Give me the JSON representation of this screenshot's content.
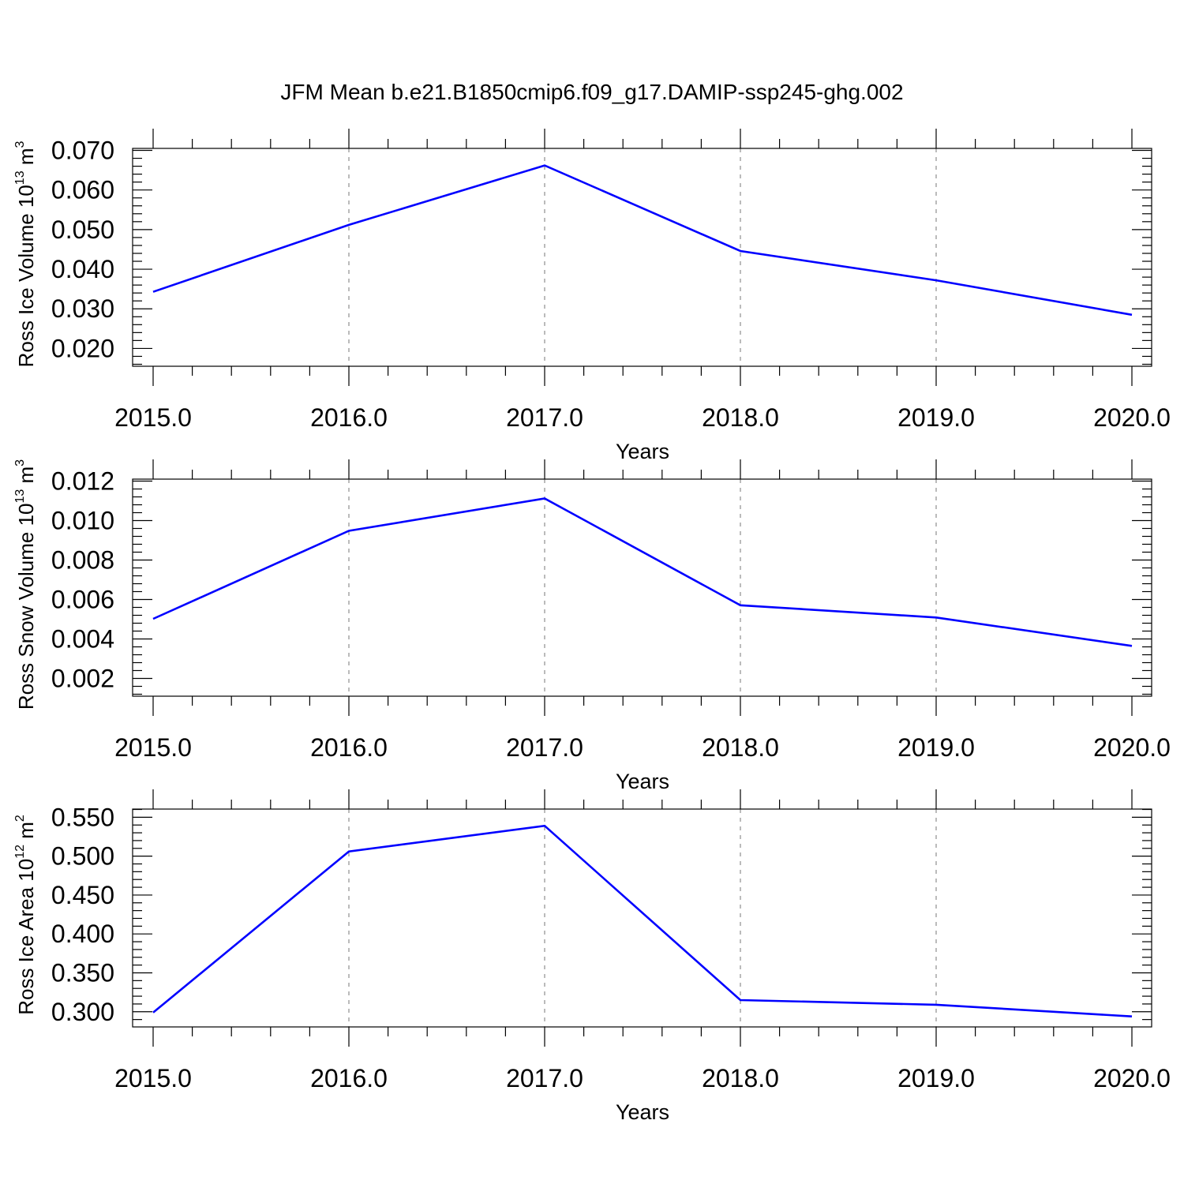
{
  "title": "JFM Mean b.e21.B1850cmip6.f09_g17.DAMIP-ssp245-ghg.002",
  "line_color": "#0000ff",
  "chart_data": [
    {
      "type": "line",
      "ylabel": {
        "text": "Ross Ice Volume 10",
        "sup": "13",
        "unit": " m",
        "unit_sup": "3"
      },
      "xlabel": "Years",
      "x": [
        2015,
        2016,
        2017,
        2018,
        2019,
        2020
      ],
      "series": [
        {
          "values": [
            0.0343,
            0.0512,
            0.0662,
            0.0446,
            0.0372,
            0.0285
          ]
        }
      ],
      "xlim": [
        2015,
        2020
      ],
      "ylim": [
        0.0155,
        0.0705
      ],
      "yticks": [
        0.02,
        0.03,
        0.04,
        0.05,
        0.06,
        0.07
      ],
      "ytick_labels": [
        "0.020",
        "0.030",
        "0.040",
        "0.050",
        "0.060",
        "0.070"
      ],
      "ytick_minor_step": 0.002,
      "xticks": [
        2015,
        2016,
        2017,
        2018,
        2019,
        2020
      ],
      "xtick_labels": [
        "2015.0",
        "2016.0",
        "2017.0",
        "2018.0",
        "2019.0",
        "2020.0"
      ],
      "xtick_minor_step": 0.2,
      "grid_x": true
    },
    {
      "type": "line",
      "ylabel": {
        "text": "Ross Snow Volume 10",
        "sup": "13",
        "unit": " m",
        "unit_sup": "3"
      },
      "xlabel": "Years",
      "x": [
        2015,
        2016,
        2017,
        2018,
        2019,
        2020
      ],
      "series": [
        {
          "values": [
            0.00502,
            0.00948,
            0.01112,
            0.00571,
            0.00509,
            0.00365
          ]
        }
      ],
      "xlim": [
        2015,
        2020
      ],
      "ylim": [
        0.0011,
        0.0121
      ],
      "yticks": [
        0.002,
        0.004,
        0.006,
        0.008,
        0.01,
        0.012
      ],
      "ytick_labels": [
        "0.002",
        "0.004",
        "0.006",
        "0.008",
        "0.010",
        "0.012"
      ],
      "ytick_minor_step": 0.0004,
      "xticks": [
        2015,
        2016,
        2017,
        2018,
        2019,
        2020
      ],
      "xtick_labels": [
        "2015.0",
        "2016.0",
        "2017.0",
        "2018.0",
        "2019.0",
        "2020.0"
      ],
      "xtick_minor_step": 0.2,
      "grid_x": true
    },
    {
      "type": "line",
      "ylabel": {
        "text": "Ross Ice Area 10",
        "sup": "12",
        "unit": " m",
        "unit_sup": "2"
      },
      "xlabel": "Years",
      "x": [
        2015,
        2016,
        2017,
        2018,
        2019,
        2020
      ],
      "series": [
        {
          "values": [
            0.299,
            0.506,
            0.539,
            0.315,
            0.309,
            0.294
          ]
        }
      ],
      "xlim": [
        2015,
        2020
      ],
      "ylim": [
        0.2805,
        0.5605
      ],
      "yticks": [
        0.3,
        0.35,
        0.4,
        0.45,
        0.5,
        0.55
      ],
      "ytick_labels": [
        "0.300",
        "0.350",
        "0.400",
        "0.450",
        "0.500",
        "0.550"
      ],
      "ytick_minor_step": 0.01,
      "xticks": [
        2015,
        2016,
        2017,
        2018,
        2019,
        2020
      ],
      "xtick_labels": [
        "2015.0",
        "2016.0",
        "2017.0",
        "2018.0",
        "2019.0",
        "2020.0"
      ],
      "xtick_minor_step": 0.2,
      "grid_x": true
    }
  ]
}
